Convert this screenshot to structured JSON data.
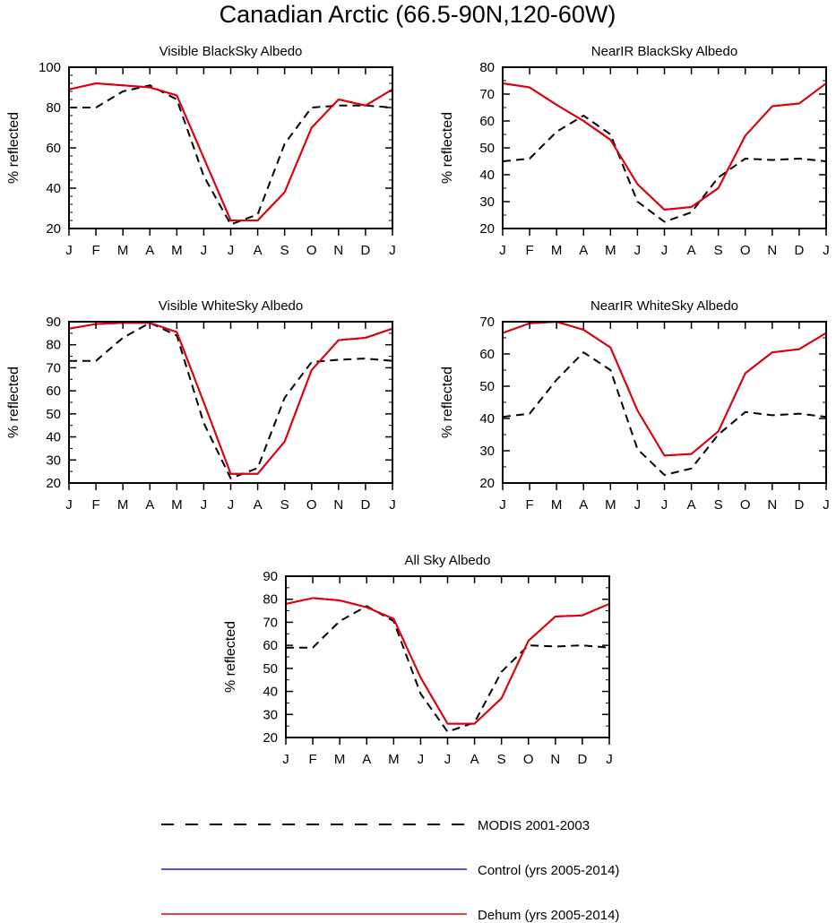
{
  "figure": {
    "title": "Canadian Arctic (66.5-90N,120-60W)"
  },
  "colors": {
    "modis": "#000000",
    "control": "#1a1ae6",
    "dehum": "#e60000",
    "axis": "#000000"
  },
  "legend": {
    "items": [
      {
        "key": "modis",
        "label": "MODIS 2001-2003",
        "style": "dashed"
      },
      {
        "key": "control",
        "label": "Control (yrs 2005-2014)",
        "style": "solid"
      },
      {
        "key": "dehum",
        "label": "Dehum (yrs 2005-2014)",
        "style": "solid"
      }
    ]
  },
  "chart_data": [
    {
      "type": "line",
      "title": "Visible BlackSky Albedo",
      "xlabel": "",
      "ylabel": "% reflected",
      "categories": [
        "J",
        "F",
        "M",
        "A",
        "M",
        "J",
        "J",
        "A",
        "S",
        "O",
        "N",
        "D",
        "J"
      ],
      "ylim": [
        20,
        100
      ],
      "yticks": [
        20,
        40,
        60,
        80,
        100
      ],
      "yminor": 5,
      "series": [
        {
          "name": "MODIS 2001-2003",
          "key": "modis",
          "values": [
            80,
            80,
            88,
            91,
            84,
            46,
            22,
            27,
            62,
            80,
            81,
            81,
            80
          ]
        },
        {
          "name": "Control (yrs 2005-2014)",
          "key": "control",
          "values": [
            89,
            92,
            91,
            90,
            86,
            55,
            24,
            24,
            38,
            70,
            84,
            81,
            89
          ]
        },
        {
          "name": "Dehum (yrs 2005-2014)",
          "key": "dehum",
          "values": [
            89,
            92,
            91,
            90,
            86,
            55,
            24,
            24,
            38,
            70,
            84,
            81,
            89
          ]
        }
      ]
    },
    {
      "type": "line",
      "title": "NearIR BlackSky Albedo",
      "xlabel": "",
      "ylabel": "% reflected",
      "categories": [
        "J",
        "F",
        "M",
        "A",
        "M",
        "J",
        "J",
        "A",
        "S",
        "O",
        "N",
        "D",
        "J"
      ],
      "ylim": [
        20,
        80
      ],
      "yticks": [
        20,
        30,
        40,
        50,
        60,
        70,
        80
      ],
      "yminor": 2,
      "series": [
        {
          "name": "MODIS 2001-2003",
          "key": "modis",
          "values": [
            45,
            46,
            56,
            62,
            55,
            30,
            22.5,
            26,
            39,
            46,
            45.5,
            46,
            45
          ]
        },
        {
          "name": "Control (yrs 2005-2014)",
          "key": "control",
          "values": [
            74,
            72.5,
            66,
            60,
            53,
            36.5,
            27,
            28,
            35,
            54.5,
            65.5,
            66.5,
            74
          ]
        },
        {
          "name": "Dehum (yrs 2005-2014)",
          "key": "dehum",
          "values": [
            74,
            72.5,
            66,
            60,
            53,
            36.5,
            27,
            28,
            35,
            54.5,
            65.5,
            66.5,
            74
          ]
        }
      ]
    },
    {
      "type": "line",
      "title": "Visible WhiteSky Albedo",
      "xlabel": "",
      "ylabel": "% reflected",
      "categories": [
        "J",
        "F",
        "M",
        "A",
        "M",
        "J",
        "J",
        "A",
        "S",
        "O",
        "N",
        "D",
        "J"
      ],
      "ylim": [
        20,
        90
      ],
      "yticks": [
        20,
        30,
        40,
        50,
        60,
        70,
        80,
        90
      ],
      "yminor": 2,
      "series": [
        {
          "name": "MODIS 2001-2003",
          "key": "modis",
          "values": [
            73,
            73,
            83,
            89.5,
            84,
            46,
            22,
            26.5,
            57,
            72.5,
            73.5,
            74,
            73
          ]
        },
        {
          "name": "Control (yrs 2005-2014)",
          "key": "control",
          "values": [
            87,
            89,
            89.5,
            89.5,
            85.5,
            55,
            24,
            24,
            38,
            69,
            82,
            83,
            87
          ]
        },
        {
          "name": "Dehum (yrs 2005-2014)",
          "key": "dehum",
          "values": [
            87,
            89,
            89.5,
            89.5,
            85.5,
            55,
            24,
            24,
            38,
            69,
            82,
            83,
            87
          ]
        }
      ]
    },
    {
      "type": "line",
      "title": "NearIR WhiteSky Albedo",
      "xlabel": "",
      "ylabel": "% reflected",
      "categories": [
        "J",
        "F",
        "M",
        "A",
        "M",
        "J",
        "J",
        "A",
        "S",
        "O",
        "N",
        "D",
        "J"
      ],
      "ylim": [
        20,
        70
      ],
      "yticks": [
        20,
        30,
        40,
        50,
        60,
        70
      ],
      "yminor": 2,
      "series": [
        {
          "name": "MODIS 2001-2003",
          "key": "modis",
          "values": [
            40.5,
            41.5,
            52,
            60.5,
            55,
            30.5,
            22.5,
            24.5,
            35,
            42,
            41,
            41.5,
            40.5
          ]
        },
        {
          "name": "Control (yrs 2005-2014)",
          "key": "control",
          "values": [
            66.5,
            69.5,
            70,
            67.5,
            62,
            42.5,
            28.5,
            29,
            36,
            54,
            60.5,
            61.5,
            66.5
          ]
        },
        {
          "name": "Dehum (yrs 2005-2014)",
          "key": "dehum",
          "values": [
            66.5,
            69.5,
            70,
            67.5,
            62,
            42.5,
            28.5,
            29,
            36,
            54,
            60.5,
            61.5,
            66.5
          ]
        }
      ]
    },
    {
      "type": "line",
      "title": "All Sky Albedo",
      "xlabel": "",
      "ylabel": "% reflected",
      "categories": [
        "J",
        "F",
        "M",
        "A",
        "M",
        "J",
        "J",
        "A",
        "S",
        "O",
        "N",
        "D",
        "J"
      ],
      "ylim": [
        20,
        90
      ],
      "yticks": [
        20,
        30,
        40,
        50,
        60,
        70,
        80,
        90
      ],
      "yminor": 2,
      "series": [
        {
          "name": "MODIS 2001-2003",
          "key": "modis",
          "values": [
            59,
            59,
            70.5,
            77,
            70.5,
            39,
            22.5,
            26.5,
            48.5,
            60,
            59.5,
            60,
            59
          ]
        },
        {
          "name": "Control (yrs 2005-2014)",
          "key": "control",
          "values": [
            78,
            80.5,
            79.5,
            76.5,
            71.5,
            46,
            26,
            26,
            37,
            62,
            72.5,
            73,
            78
          ]
        },
        {
          "name": "Dehum (yrs 2005-2014)",
          "key": "dehum",
          "values": [
            78,
            80.5,
            79.5,
            76.5,
            71.5,
            46,
            26,
            26,
            37,
            62,
            72.5,
            73,
            78
          ]
        }
      ]
    }
  ]
}
